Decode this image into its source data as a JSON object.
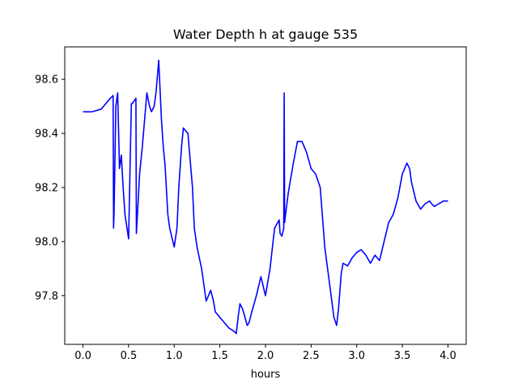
{
  "chart_data": {
    "type": "line",
    "title": "Water Depth h at gauge 535",
    "xlabel": "hours",
    "ylabel": "",
    "xlim": [
      -0.2,
      4.2
    ],
    "ylim": [
      97.62,
      98.72
    ],
    "xticks": [
      0.0,
      0.5,
      1.0,
      1.5,
      2.0,
      2.5,
      3.0,
      3.5,
      4.0
    ],
    "xtick_labels": [
      "0.0",
      "0.5",
      "1.0",
      "1.5",
      "2.0",
      "2.5",
      "3.0",
      "3.5",
      "4.0"
    ],
    "yticks": [
      97.8,
      98.0,
      98.2,
      98.4,
      98.6
    ],
    "ytick_labels": [
      "97.8",
      "98.0",
      "98.2",
      "98.4",
      "98.6"
    ],
    "grid": false,
    "series": [
      {
        "color": "#0000ff",
        "x": [
          0.0,
          0.1,
          0.2,
          0.25,
          0.3,
          0.33,
          0.335,
          0.34,
          0.36,
          0.38,
          0.4,
          0.42,
          0.44,
          0.46,
          0.5,
          0.53,
          0.535,
          0.54,
          0.56,
          0.58,
          0.585,
          0.59,
          0.6,
          0.62,
          0.65,
          0.7,
          0.73,
          0.75,
          0.78,
          0.8,
          0.83,
          0.86,
          0.88,
          0.9,
          0.93,
          0.95,
          1.0,
          1.03,
          1.05,
          1.08,
          1.1,
          1.15,
          1.2,
          1.22,
          1.25,
          1.3,
          1.35,
          1.4,
          1.43,
          1.45,
          1.5,
          1.55,
          1.6,
          1.65,
          1.68,
          1.7,
          1.72,
          1.75,
          1.8,
          1.82,
          1.85,
          1.9,
          1.95,
          2.0,
          2.05,
          2.1,
          2.15,
          2.16,
          2.18,
          2.2,
          2.205,
          2.21,
          2.22,
          2.25,
          2.3,
          2.35,
          2.4,
          2.45,
          2.5,
          2.55,
          2.6,
          2.65,
          2.7,
          2.75,
          2.78,
          2.8,
          2.83,
          2.85,
          2.9,
          2.95,
          3.0,
          3.05,
          3.1,
          3.15,
          3.2,
          3.25,
          3.3,
          3.35,
          3.4,
          3.45,
          3.5,
          3.55,
          3.58,
          3.6,
          3.65,
          3.7,
          3.75,
          3.8,
          3.82,
          3.85,
          3.9,
          3.95,
          4.0
        ],
        "y": [
          98.48,
          98.48,
          98.49,
          98.51,
          98.53,
          98.54,
          98.05,
          98.1,
          98.5,
          98.55,
          98.27,
          98.32,
          98.2,
          98.1,
          98.01,
          98.51,
          98.51,
          98.51,
          98.52,
          98.53,
          98.03,
          98.06,
          98.12,
          98.25,
          98.35,
          98.55,
          98.5,
          98.48,
          98.5,
          98.55,
          98.67,
          98.45,
          98.35,
          98.28,
          98.1,
          98.05,
          97.98,
          98.05,
          98.2,
          98.35,
          98.42,
          98.4,
          98.2,
          98.05,
          97.98,
          97.9,
          97.78,
          97.82,
          97.78,
          97.74,
          97.72,
          97.7,
          97.68,
          97.67,
          97.66,
          97.72,
          97.77,
          97.75,
          97.69,
          97.7,
          97.74,
          97.8,
          97.87,
          97.8,
          97.9,
          98.05,
          98.08,
          98.03,
          98.02,
          98.05,
          98.55,
          98.07,
          98.1,
          98.18,
          98.28,
          98.37,
          98.37,
          98.33,
          98.27,
          98.25,
          98.2,
          97.98,
          97.85,
          97.72,
          97.69,
          97.75,
          97.88,
          97.92,
          97.91,
          97.94,
          97.96,
          97.97,
          97.95,
          97.92,
          97.95,
          97.93,
          98.0,
          98.07,
          98.1,
          98.16,
          98.25,
          98.29,
          98.27,
          98.22,
          98.15,
          98.12,
          98.14,
          98.15,
          98.14,
          98.13,
          98.14,
          98.15,
          98.15
        ]
      }
    ]
  }
}
